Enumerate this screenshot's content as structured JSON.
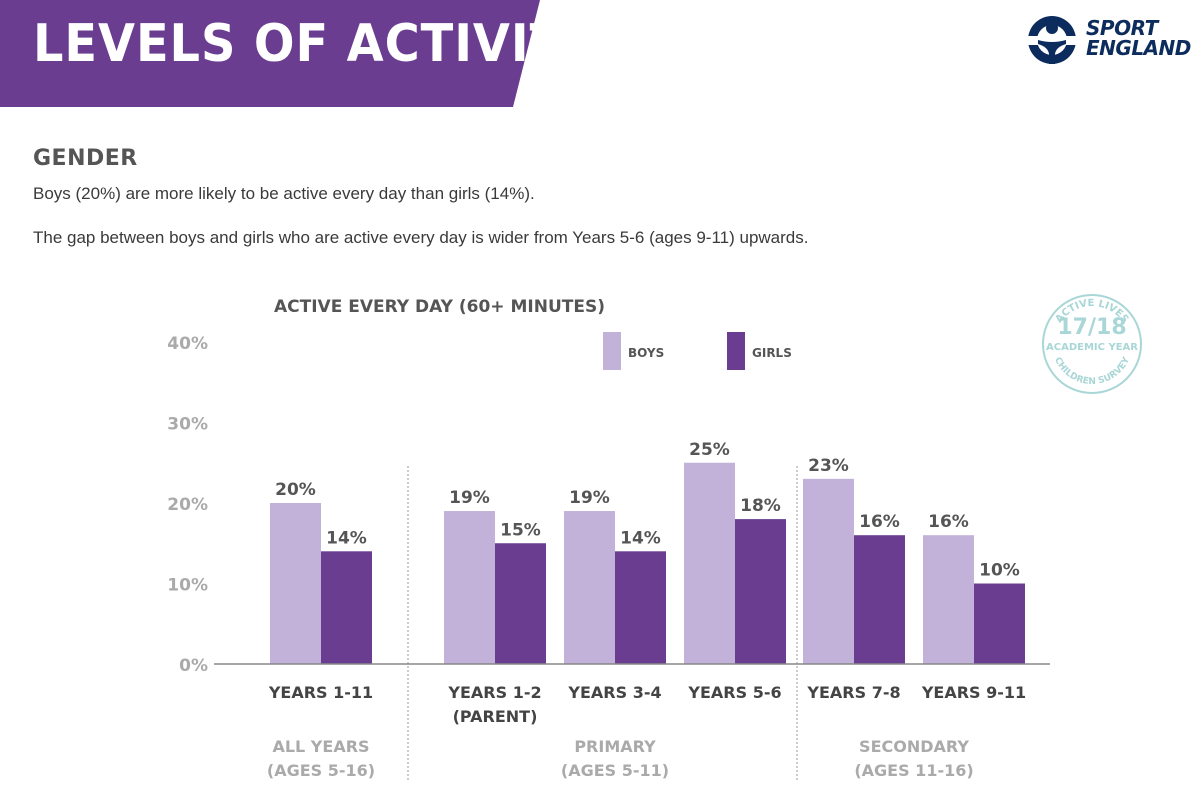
{
  "header": {
    "title": "LEVELS OF ACTIVITY",
    "logo_line1": "SPORT",
    "logo_line2": "ENGLAND",
    "brand_color": "#6a3d91"
  },
  "section": {
    "heading": "GENDER",
    "para1": "Boys (20%) are more likely to be active every day than girls (14%).",
    "para2": "The gap between boys and girls who are active every day is wider from Years 5-6 (ages 9-11) upwards."
  },
  "stamp": {
    "line_top": "ACTIVE LIVES",
    "year": "17/18",
    "line_mid": "ACADEMIC YEAR",
    "line_bottom": "CHILDREN SURVEY",
    "color": "#a9d6d6"
  },
  "chart_data": {
    "type": "bar",
    "title": "ACTIVE EVERY DAY (60+ MINUTES)",
    "xlabel": "",
    "ylabel": "",
    "ylim": [
      0,
      40
    ],
    "yticks": [
      "0%",
      "10%",
      "20%",
      "30%",
      "40%"
    ],
    "legend_position": "top-right",
    "categories": [
      [
        "YEARS 1-11"
      ],
      [
        "YEARS 1-2",
        "(PARENT)"
      ],
      [
        "YEARS 3-4"
      ],
      [
        "YEARS 5-6"
      ],
      [
        "YEARS 7-8"
      ],
      [
        "YEARS 9-11"
      ]
    ],
    "series": [
      {
        "name": "BOYS",
        "color": "#c2b1d8",
        "values": [
          20,
          19,
          19,
          25,
          23,
          16
        ],
        "labels": [
          "20%",
          "19%",
          "19%",
          "25%",
          "23%",
          "16%"
        ]
      },
      {
        "name": "GIRLS",
        "color": "#6a3d91",
        "values": [
          14,
          15,
          14,
          18,
          16,
          10
        ],
        "labels": [
          "14%",
          "15%",
          "14%",
          "18%",
          "16%",
          "10%"
        ]
      }
    ],
    "groups": [
      {
        "lines": [
          "ALL YEARS",
          "(AGES 5-16)"
        ],
        "categories": [
          0
        ]
      },
      {
        "lines": [
          "PRIMARY",
          "(AGES 5-11)"
        ],
        "categories": [
          1,
          2,
          3
        ]
      },
      {
        "lines": [
          "SECONDARY",
          "(AGES 11-16)"
        ],
        "categories": [
          4,
          5
        ]
      }
    ]
  }
}
